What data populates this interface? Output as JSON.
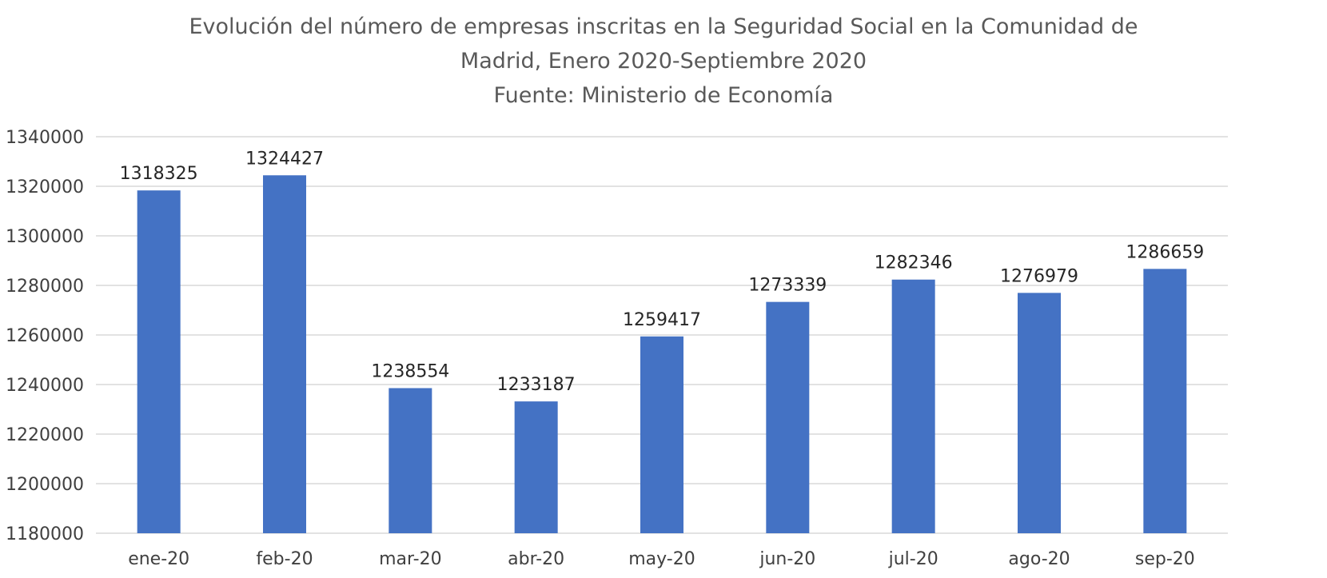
{
  "chart_data": {
    "type": "bar",
    "title_lines": [
      "Evolución del número de empresas inscritas en la Seguridad Social en la Comunidad de",
      "Madrid, Enero 2020-Septiembre 2020",
      "Fuente: Ministerio de Economía"
    ],
    "xlabel": "",
    "ylabel": "",
    "categories": [
      "ene-20",
      "feb-20",
      "mar-20",
      "abr-20",
      "may-20",
      "jun-20",
      "jul-20",
      "ago-20",
      "sep-20"
    ],
    "values": [
      1318325,
      1324427,
      1238554,
      1233187,
      1259417,
      1273339,
      1282346,
      1276979,
      1286659
    ],
    "data_labels": [
      "1318325",
      "1324427",
      "1238554",
      "1233187",
      "1259417",
      "1273339",
      "1282346",
      "1276979",
      "1286659"
    ],
    "ylim": [
      1180000,
      1340000
    ],
    "yticks": [
      1180000,
      1200000,
      1220000,
      1240000,
      1260000,
      1280000,
      1300000,
      1320000,
      1340000
    ],
    "ytick_labels": [
      "1180000",
      "1200000",
      "1220000",
      "1240000",
      "1260000",
      "1280000",
      "1300000",
      "1320000",
      "1340000"
    ],
    "grid": true,
    "legend": "none",
    "colors": {
      "bar": "#4472C4",
      "grid": "#D9D9D9",
      "title": "#595959",
      "tick": "#404040",
      "label": "#262626"
    }
  }
}
